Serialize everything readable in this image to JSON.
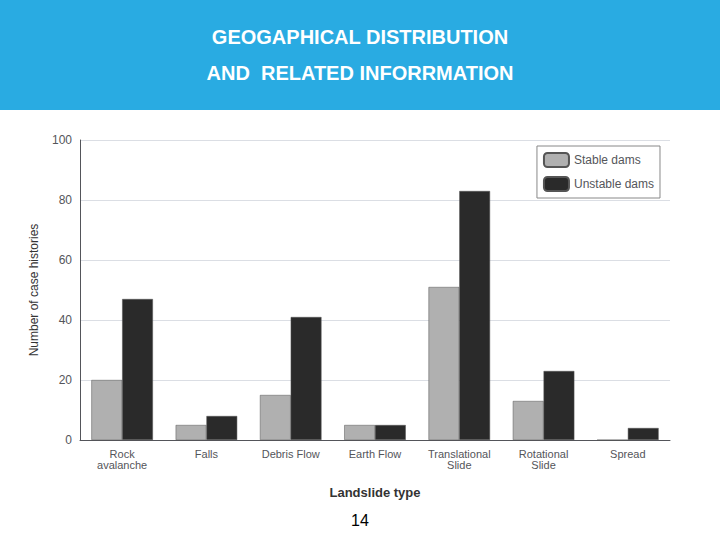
{
  "chart_data": {
    "type": "bar",
    "title": "GEOGAPHICAL DISTRIBUTION",
    "subtitle": "AND  RELATED INFORRMATION",
    "categories": [
      "Rock\navalanche",
      "Falls",
      "Debris Flow",
      "Earth Flow",
      "Translational\nSlide",
      "Rotational\nSlide",
      "Spread"
    ],
    "series": [
      {
        "name": "Stable dams",
        "color": "#b0b0b0",
        "values": [
          20,
          5,
          15,
          5,
          51,
          13,
          0
        ]
      },
      {
        "name": "Unstable dams",
        "color": "#2a2a2a",
        "values": [
          47,
          8,
          41,
          5,
          83,
          23,
          4
        ]
      }
    ],
    "xlabel": "Landslide type",
    "ylabel": "Number of case histories",
    "ylim": [
      0,
      100
    ],
    "yticks": [
      0,
      20,
      40,
      60,
      80,
      100
    ],
    "grid": true,
    "legend": "upper right",
    "annotations": [
      "14"
    ]
  }
}
